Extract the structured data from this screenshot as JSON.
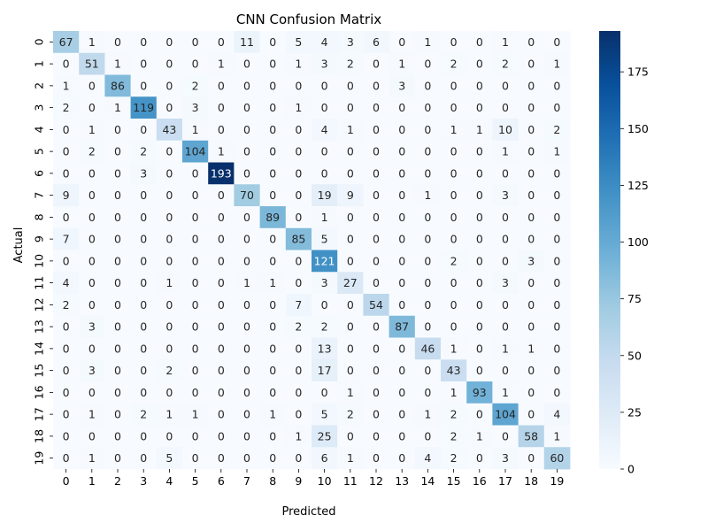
{
  "chart_data": {
    "type": "heatmap",
    "title": "CNN Confusion Matrix",
    "xlabel": "Predicted",
    "ylabel": "Actual",
    "x_categories": [
      "0",
      "1",
      "2",
      "3",
      "4",
      "5",
      "6",
      "7",
      "8",
      "9",
      "10",
      "11",
      "12",
      "13",
      "14",
      "15",
      "16",
      "17",
      "18",
      "19"
    ],
    "y_categories": [
      "0",
      "1",
      "2",
      "3",
      "4",
      "5",
      "6",
      "7",
      "8",
      "9",
      "10",
      "11",
      "12",
      "13",
      "14",
      "15",
      "16",
      "17",
      "18",
      "19"
    ],
    "values": [
      [
        67,
        1,
        0,
        0,
        0,
        0,
        0,
        11,
        0,
        5,
        4,
        3,
        6,
        0,
        1,
        0,
        0,
        1,
        0,
        0
      ],
      [
        0,
        51,
        1,
        0,
        0,
        0,
        1,
        0,
        0,
        1,
        3,
        2,
        0,
        1,
        0,
        2,
        0,
        2,
        0,
        1
      ],
      [
        1,
        0,
        86,
        0,
        0,
        2,
        0,
        0,
        0,
        0,
        0,
        0,
        0,
        3,
        0,
        0,
        0,
        0,
        0,
        0
      ],
      [
        2,
        0,
        1,
        119,
        0,
        3,
        0,
        0,
        0,
        1,
        0,
        0,
        0,
        0,
        0,
        0,
        0,
        0,
        0,
        0
      ],
      [
        0,
        1,
        0,
        0,
        43,
        1,
        0,
        0,
        0,
        0,
        4,
        1,
        0,
        0,
        0,
        1,
        1,
        10,
        0,
        2
      ],
      [
        0,
        2,
        0,
        2,
        0,
        104,
        1,
        0,
        0,
        0,
        0,
        0,
        0,
        0,
        0,
        0,
        0,
        1,
        0,
        1
      ],
      [
        0,
        0,
        0,
        3,
        0,
        0,
        193,
        0,
        0,
        0,
        0,
        0,
        0,
        0,
        0,
        0,
        0,
        0,
        0,
        0
      ],
      [
        9,
        0,
        0,
        0,
        0,
        0,
        0,
        70,
        0,
        0,
        19,
        9,
        0,
        0,
        1,
        0,
        0,
        3,
        0,
        0
      ],
      [
        0,
        0,
        0,
        0,
        0,
        0,
        0,
        0,
        89,
        0,
        1,
        0,
        0,
        0,
        0,
        0,
        0,
        0,
        0,
        0
      ],
      [
        7,
        0,
        0,
        0,
        0,
        0,
        0,
        0,
        0,
        85,
        5,
        0,
        0,
        0,
        0,
        0,
        0,
        0,
        0,
        0
      ],
      [
        0,
        0,
        0,
        0,
        0,
        0,
        0,
        0,
        0,
        0,
        121,
        0,
        0,
        0,
        0,
        2,
        0,
        0,
        3,
        0
      ],
      [
        4,
        0,
        0,
        0,
        1,
        0,
        0,
        1,
        1,
        0,
        3,
        27,
        0,
        0,
        0,
        0,
        0,
        3,
        0,
        0
      ],
      [
        2,
        0,
        0,
        0,
        0,
        0,
        0,
        0,
        0,
        7,
        0,
        0,
        54,
        0,
        0,
        0,
        0,
        0,
        0,
        0
      ],
      [
        0,
        3,
        0,
        0,
        0,
        0,
        0,
        0,
        0,
        2,
        2,
        0,
        0,
        87,
        0,
        0,
        0,
        0,
        0,
        0
      ],
      [
        0,
        0,
        0,
        0,
        0,
        0,
        0,
        0,
        0,
        0,
        13,
        0,
        0,
        0,
        46,
        1,
        0,
        1,
        1,
        0
      ],
      [
        0,
        3,
        0,
        0,
        2,
        0,
        0,
        0,
        0,
        0,
        17,
        0,
        0,
        0,
        0,
        43,
        0,
        0,
        0,
        0
      ],
      [
        0,
        0,
        0,
        0,
        0,
        0,
        0,
        0,
        0,
        0,
        0,
        1,
        0,
        0,
        0,
        1,
        93,
        1,
        0,
        0
      ],
      [
        0,
        1,
        0,
        2,
        1,
        1,
        0,
        0,
        1,
        0,
        5,
        2,
        0,
        0,
        1,
        2,
        0,
        104,
        0,
        4
      ],
      [
        0,
        0,
        0,
        0,
        0,
        0,
        0,
        0,
        0,
        1,
        25,
        0,
        0,
        0,
        0,
        2,
        1,
        0,
        58,
        1
      ],
      [
        0,
        1,
        0,
        0,
        5,
        0,
        0,
        0,
        0,
        0,
        6,
        1,
        0,
        0,
        4,
        2,
        0,
        3,
        0,
        60
      ]
    ],
    "color_range": [
      0,
      193
    ],
    "colorbar_ticks": [
      0,
      25,
      50,
      75,
      100,
      125,
      150,
      175
    ],
    "colormap": "Blues",
    "colors": {
      "low": "#f7fbff",
      "high": "#08306b",
      "dark_text": "#262626",
      "light_text": "#ffffff"
    },
    "grid": false,
    "legend": "colorbar right"
  }
}
